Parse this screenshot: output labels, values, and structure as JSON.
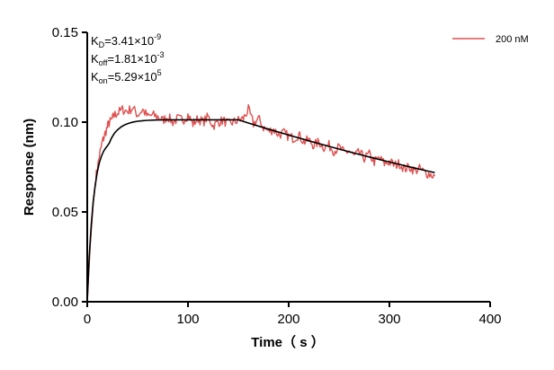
{
  "chart_data": {
    "type": "line",
    "title": "",
    "xlabel": "Time（ s ）",
    "ylabel": "Response (nm)",
    "xlim": [
      0,
      400
    ],
    "ylim": [
      0,
      0.15
    ],
    "x_ticks": [
      0,
      100,
      200,
      300,
      400
    ],
    "x_tick_labels": [
      "0",
      "100",
      "200",
      "300",
      "400"
    ],
    "y_ticks": [
      0.0,
      0.05,
      0.1,
      0.15
    ],
    "y_tick_labels": [
      "0.00",
      "0.05",
      "0.10",
      "0.15"
    ],
    "grid": false,
    "legend": {
      "position": "top-right",
      "entries": [
        "200 nM"
      ]
    },
    "annotations": [
      {
        "main": "K",
        "sub": "D",
        "rest": "=3.41×10",
        "sup": "-9"
      },
      {
        "main": "K",
        "sub": "off",
        "rest": "=1.81×10",
        "sup": "-3"
      },
      {
        "main": "K",
        "sub": "on",
        "rest": "=5.29×10",
        "sup": "5"
      }
    ],
    "series": [
      {
        "name": "200 nM",
        "color": "#e05050",
        "style": "noisy",
        "x": [
          0,
          3,
          6,
          9,
          12,
          15,
          18,
          21,
          24,
          27,
          30,
          35,
          40,
          45,
          50,
          55,
          60,
          65,
          70,
          75,
          80,
          85,
          90,
          95,
          100,
          105,
          110,
          115,
          120,
          125,
          130,
          135,
          140,
          145,
          150,
          155,
          160,
          165,
          170,
          175,
          180,
          185,
          190,
          195,
          200,
          205,
          210,
          215,
          220,
          225,
          230,
          235,
          240,
          245,
          250,
          255,
          260,
          265,
          270,
          275,
          280,
          285,
          290,
          295,
          300,
          305,
          310,
          315,
          320,
          325,
          330,
          335,
          340,
          345
        ],
        "y": [
          0.0,
          0.032,
          0.055,
          0.071,
          0.081,
          0.089,
          0.094,
          0.099,
          0.101,
          0.104,
          0.105,
          0.107,
          0.106,
          0.108,
          0.104,
          0.107,
          0.103,
          0.104,
          0.103,
          0.101,
          0.103,
          0.1,
          0.102,
          0.101,
          0.104,
          0.099,
          0.102,
          0.1,
          0.103,
          0.098,
          0.1,
          0.101,
          0.099,
          0.1,
          0.101,
          0.102,
          0.107,
          0.099,
          0.102,
          0.097,
          0.095,
          0.096,
          0.093,
          0.094,
          0.092,
          0.091,
          0.093,
          0.089,
          0.09,
          0.087,
          0.089,
          0.086,
          0.087,
          0.084,
          0.086,
          0.083,
          0.084,
          0.081,
          0.083,
          0.08,
          0.082,
          0.078,
          0.08,
          0.077,
          0.078,
          0.076,
          0.077,
          0.074,
          0.075,
          0.073,
          0.074,
          0.072,
          0.071,
          0.07
        ]
      },
      {
        "name": "",
        "color": "#000000",
        "style": "fit",
        "x": [
          0,
          2,
          4,
          6,
          8,
          10,
          12,
          14,
          16,
          18,
          20,
          22,
          24,
          27,
          30,
          34,
          38,
          42,
          46,
          50,
          55,
          60,
          70,
          80,
          100,
          120,
          140,
          150,
          160,
          180,
          200,
          220,
          240,
          260,
          280,
          300,
          320,
          340,
          345
        ],
        "y": [
          0.0,
          0.0249,
          0.0429,
          0.056,
          0.0654,
          0.0723,
          0.0773,
          0.0809,
          0.0835,
          0.0854,
          0.0868,
          0.0884,
          0.0911,
          0.0938,
          0.0957,
          0.0975,
          0.0987,
          0.0995,
          0.1001,
          0.1005,
          0.1008,
          0.101,
          0.1012,
          0.1013,
          0.1013,
          0.1013,
          0.1013,
          0.1013,
          0.0995,
          0.0961,
          0.0928,
          0.0896,
          0.0865,
          0.0835,
          0.0806,
          0.0778,
          0.0751,
          0.0725,
          0.0719
        ]
      }
    ]
  }
}
